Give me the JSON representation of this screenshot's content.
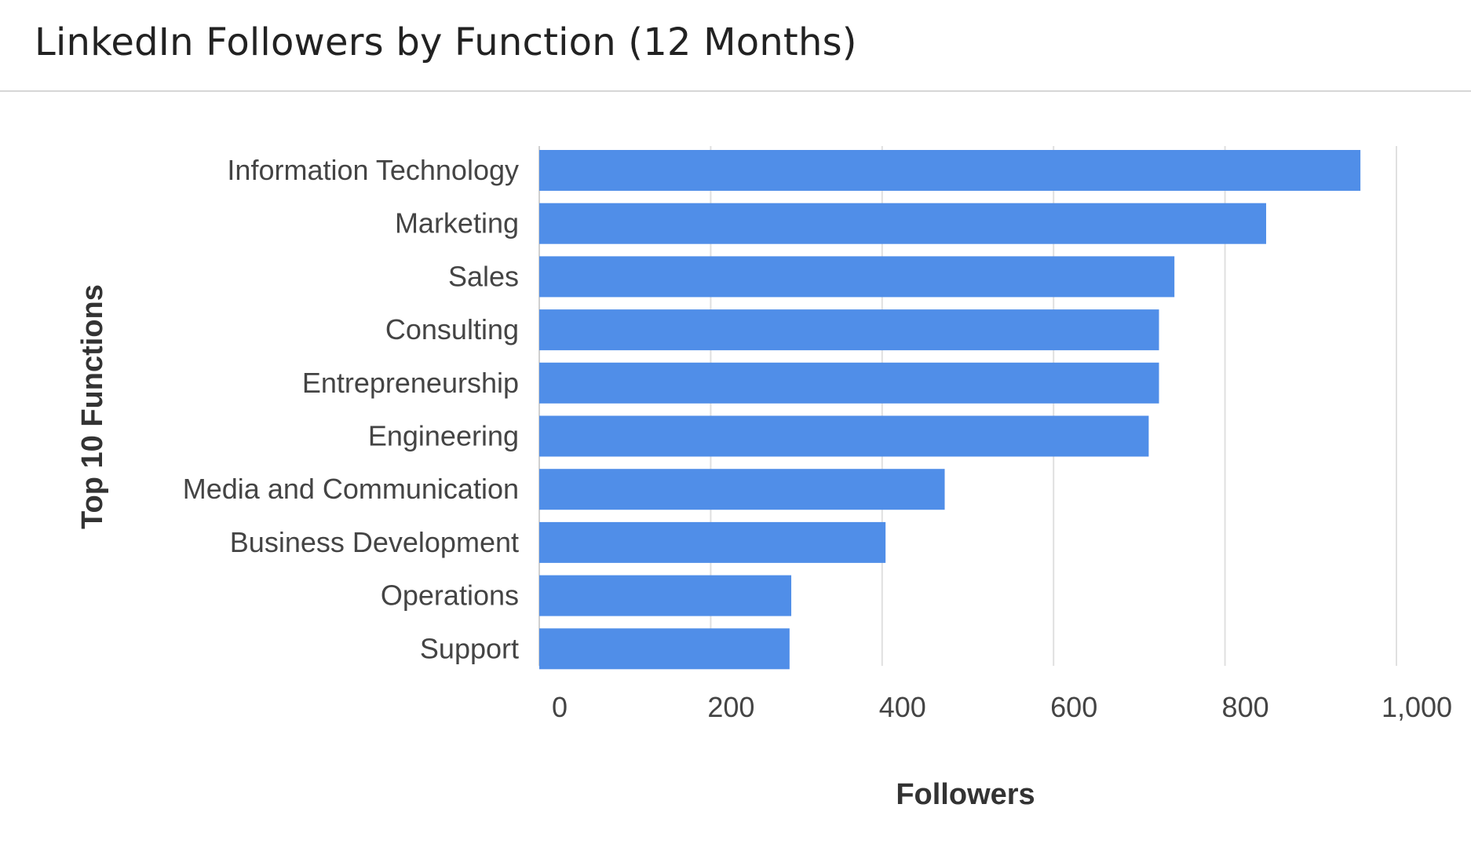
{
  "header": {
    "title": "LinkedIn Followers by Function (12 Months)"
  },
  "colors": {
    "bar": "#508ee8",
    "grid": "#e0e0e0",
    "baseline": "#d0d0d0"
  },
  "chart_data": {
    "type": "bar",
    "orientation": "horizontal",
    "title": "LinkedIn Followers by Function (12 Months)",
    "xlabel": "Followers",
    "ylabel": "Top 10 Functions",
    "categories": [
      "Information Technology",
      "Marketing",
      "Sales",
      "Consulting",
      "Entrepreneurship",
      "Engineering",
      "Media and Communication",
      "Business Development",
      "Operations",
      "Support"
    ],
    "values": [
      958,
      848,
      741,
      723,
      723,
      711,
      473,
      404,
      294,
      292
    ],
    "xlim": [
      0,
      1000
    ],
    "xticks": [
      0,
      200,
      400,
      600,
      800,
      1000
    ],
    "xtick_labels": [
      "0",
      "200",
      "400",
      "600",
      "800",
      "1,000"
    ],
    "grid": true,
    "legend": "none"
  }
}
